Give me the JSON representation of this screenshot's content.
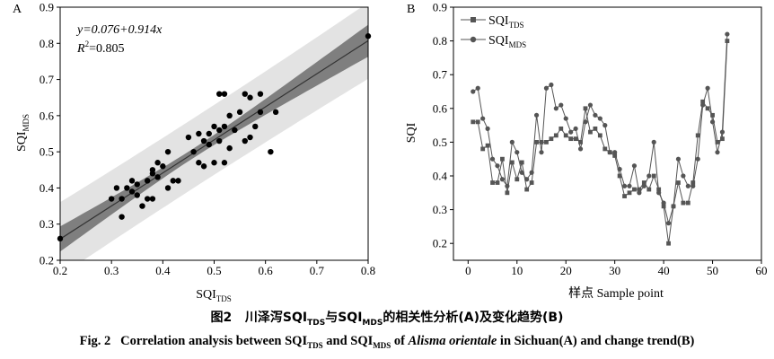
{
  "caption": {
    "zh_fig": "图2",
    "zh_a": "川泽泻SQI",
    "zh_a_sub": "TDS",
    "zh_b": "与SQI",
    "zh_b_sub": "MDS",
    "zh_c": "的相关性分析(A)及变化趋势(B)",
    "en_fig": "Fig. 2",
    "en_a": "Correlation analysis between SQI",
    "en_a_sub": "TDS",
    "en_b": " and SQI",
    "en_b_sub": "MDS",
    "en_c": " of ",
    "en_species": "Alisma orientale",
    "en_d": " in Sichuan(A) and change trend(B)"
  },
  "chart_data": [
    {
      "type": "scatter",
      "panel": "A",
      "xlabel": "SQI",
      "xlabel_sub": "TDS",
      "ylabel": "SQI",
      "ylabel_sub": "MDS",
      "xlim": [
        0.2,
        0.8
      ],
      "ylim": [
        0.2,
        0.9
      ],
      "xticks": [
        "0.2",
        "0.3",
        "0.4",
        "0.5",
        "0.6",
        "0.7",
        "0.8"
      ],
      "yticks": [
        "0.2",
        "0.3",
        "0.4",
        "0.5",
        "0.6",
        "0.7",
        "0.8",
        "0.9"
      ],
      "equation": "y=0.076+0.914x",
      "r2_label": "R",
      "r2_sup": "2",
      "r2_value": "=0.805",
      "regression": {
        "intercept": 0.076,
        "slope": 0.914
      },
      "colors": {
        "point": "#000000",
        "line": "#333333",
        "confidence_band": "#7f7f7f",
        "prediction_band": "#e3e3e3"
      },
      "points": [
        [
          0.2,
          0.26
        ],
        [
          0.3,
          0.37
        ],
        [
          0.31,
          0.4
        ],
        [
          0.32,
          0.37
        ],
        [
          0.32,
          0.32
        ],
        [
          0.33,
          0.4
        ],
        [
          0.34,
          0.42
        ],
        [
          0.34,
          0.39
        ],
        [
          0.35,
          0.38
        ],
        [
          0.35,
          0.41
        ],
        [
          0.36,
          0.35
        ],
        [
          0.37,
          0.37
        ],
        [
          0.37,
          0.42
        ],
        [
          0.38,
          0.45
        ],
        [
          0.38,
          0.44
        ],
        [
          0.38,
          0.37
        ],
        [
          0.39,
          0.43
        ],
        [
          0.39,
          0.47
        ],
        [
          0.4,
          0.46
        ],
        [
          0.41,
          0.5
        ],
        [
          0.41,
          0.4
        ],
        [
          0.42,
          0.42
        ],
        [
          0.43,
          0.42
        ],
        [
          0.45,
          0.54
        ],
        [
          0.46,
          0.5
        ],
        [
          0.47,
          0.47
        ],
        [
          0.47,
          0.55
        ],
        [
          0.48,
          0.46
        ],
        [
          0.48,
          0.53
        ],
        [
          0.49,
          0.55
        ],
        [
          0.49,
          0.52
        ],
        [
          0.5,
          0.57
        ],
        [
          0.5,
          0.47
        ],
        [
          0.51,
          0.53
        ],
        [
          0.51,
          0.56
        ],
        [
          0.51,
          0.66
        ],
        [
          0.52,
          0.47
        ],
        [
          0.52,
          0.66
        ],
        [
          0.52,
          0.57
        ],
        [
          0.53,
          0.6
        ],
        [
          0.53,
          0.51
        ],
        [
          0.54,
          0.56
        ],
        [
          0.55,
          0.61
        ],
        [
          0.56,
          0.66
        ],
        [
          0.56,
          0.53
        ],
        [
          0.57,
          0.54
        ],
        [
          0.57,
          0.65
        ],
        [
          0.58,
          0.57
        ],
        [
          0.59,
          0.66
        ],
        [
          0.59,
          0.61
        ],
        [
          0.61,
          0.5
        ],
        [
          0.62,
          0.61
        ],
        [
          0.8,
          0.82
        ]
      ]
    },
    {
      "type": "line",
      "panel": "B",
      "xlabel": "样点 Sample point",
      "ylabel": "SQI",
      "xlim": [
        -3,
        60
      ],
      "ylim": [
        0.15,
        0.9
      ],
      "xticks": [
        "0",
        "10",
        "20",
        "30",
        "40",
        "50",
        "60"
      ],
      "yticks": [
        "0.2",
        "0.3",
        "0.4",
        "0.5",
        "0.6",
        "0.7",
        "0.8",
        "0.9"
      ],
      "legend_position": "top-left",
      "x": [
        1,
        2,
        3,
        4,
        5,
        6,
        7,
        8,
        9,
        10,
        11,
        12,
        13,
        14,
        15,
        16,
        17,
        18,
        19,
        20,
        21,
        22,
        23,
        24,
        25,
        26,
        27,
        28,
        29,
        30,
        31,
        32,
        33,
        34,
        35,
        36,
        37,
        38,
        39,
        40,
        41,
        42,
        43,
        44,
        45,
        46,
        47,
        48,
        49,
        50,
        51,
        52,
        53
      ],
      "series": [
        {
          "name": "SQI",
          "name_sub": "TDS",
          "marker": "square",
          "values": [
            0.56,
            0.56,
            0.48,
            0.49,
            0.38,
            0.38,
            0.45,
            0.35,
            0.44,
            0.39,
            0.44,
            0.36,
            0.38,
            0.5,
            0.5,
            0.5,
            0.51,
            0.52,
            0.54,
            0.52,
            0.51,
            0.51,
            0.5,
            0.6,
            0.53,
            0.54,
            0.52,
            0.48,
            0.47,
            0.46,
            0.4,
            0.34,
            0.35,
            0.36,
            0.36,
            0.38,
            0.36,
            0.4,
            0.36,
            0.31,
            0.2,
            0.31,
            0.38,
            0.32,
            0.32,
            0.38,
            0.52,
            0.62,
            0.6,
            0.58,
            0.5,
            0.51,
            0.8
          ]
        },
        {
          "name": "SQI",
          "name_sub": "MDS",
          "marker": "circle",
          "values": [
            0.65,
            0.66,
            0.57,
            0.54,
            0.45,
            0.43,
            0.39,
            0.37,
            0.5,
            0.47,
            0.41,
            0.39,
            0.41,
            0.58,
            0.47,
            0.66,
            0.67,
            0.6,
            0.61,
            0.57,
            0.53,
            0.54,
            0.48,
            0.56,
            0.61,
            0.58,
            0.57,
            0.55,
            0.47,
            0.47,
            0.42,
            0.37,
            0.37,
            0.43,
            0.35,
            0.37,
            0.4,
            0.5,
            0.35,
            0.32,
            0.26,
            0.31,
            0.45,
            0.4,
            0.37,
            0.37,
            0.45,
            0.61,
            0.66,
            0.56,
            0.47,
            0.53,
            0.82
          ]
        }
      ]
    }
  ]
}
